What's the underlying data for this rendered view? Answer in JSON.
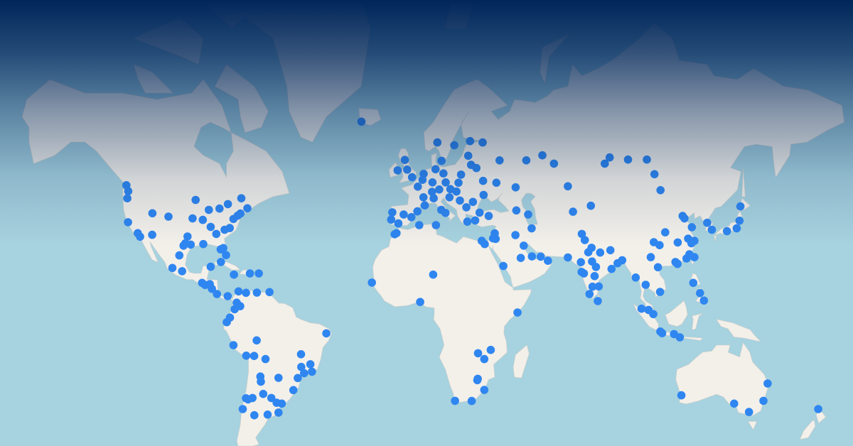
{
  "map": {
    "projection": "web-mercator",
    "colors": {
      "ocean": "#a7d2df",
      "land": "#f3f0ea",
      "marker": "#2f86f0",
      "top_shade": "#00265a"
    },
    "markers": [
      [
        47.6,
        -122.3
      ],
      [
        45.5,
        -122.7
      ],
      [
        49.3,
        -123.1
      ],
      [
        37.8,
        -122.4
      ],
      [
        34.0,
        -118.2
      ],
      [
        32.7,
        -117.2
      ],
      [
        33.4,
        -112.0
      ],
      [
        39.7,
        -105.0
      ],
      [
        40.8,
        -111.9
      ],
      [
        32.8,
        -96.8
      ],
      [
        29.8,
        -95.4
      ],
      [
        30.3,
        -97.7
      ],
      [
        29.4,
        -98.5
      ],
      [
        41.9,
        -87.6
      ],
      [
        42.3,
        -83.0
      ],
      [
        40.7,
        -74.0
      ],
      [
        42.4,
        -71.0
      ],
      [
        43.7,
        -79.4
      ],
      [
        45.5,
        -73.6
      ],
      [
        40.0,
        -75.2
      ],
      [
        38.9,
        -77.0
      ],
      [
        33.7,
        -84.4
      ],
      [
        25.8,
        -80.2
      ],
      [
        28.5,
        -81.4
      ],
      [
        28.0,
        -82.5
      ],
      [
        36.2,
        -86.8
      ],
      [
        45.0,
        -93.3
      ],
      [
        39.1,
        -94.6
      ],
      [
        38.6,
        -90.2
      ],
      [
        35.2,
        -80.8
      ],
      [
        35.8,
        -78.6
      ],
      [
        30.0,
        -90.0
      ],
      [
        19.4,
        -99.1
      ],
      [
        20.7,
        -103.3
      ],
      [
        25.7,
        -100.3
      ],
      [
        21.2,
        -86.8
      ],
      [
        14.6,
        -90.5
      ],
      [
        13.7,
        -89.2
      ],
      [
        14.1,
        -87.2
      ],
      [
        12.1,
        -86.3
      ],
      [
        9.9,
        -84.1
      ],
      [
        9.0,
        -79.5
      ],
      [
        23.1,
        -82.4
      ],
      [
        18.5,
        -69.9
      ],
      [
        18.5,
        -66.1
      ],
      [
        18.0,
        -76.8
      ],
      [
        10.7,
        -61.5
      ],
      [
        10.5,
        -66.9
      ],
      [
        11.0,
        -74.8
      ],
      [
        10.4,
        -71.6
      ],
      [
        4.7,
        -74.1
      ],
      [
        6.2,
        -75.6
      ],
      [
        3.4,
        -76.5
      ],
      [
        -0.2,
        -78.5
      ],
      [
        -2.2,
        -79.9
      ],
      [
        -12.0,
        -77.0
      ],
      [
        -16.4,
        -71.5
      ],
      [
        -16.5,
        -68.1
      ],
      [
        -17.8,
        -63.2
      ],
      [
        -25.3,
        -57.6
      ],
      [
        -33.4,
        -70.7
      ],
      [
        -33.0,
        -71.6
      ],
      [
        -36.8,
        -73.0
      ],
      [
        -32.9,
        -68.8
      ],
      [
        -31.4,
        -64.2
      ],
      [
        -32.9,
        -60.7
      ],
      [
        -34.6,
        -58.4
      ],
      [
        -34.9,
        -56.2
      ],
      [
        -38.0,
        -57.6
      ],
      [
        -30.0,
        -51.2
      ],
      [
        -25.4,
        -49.3
      ],
      [
        -23.5,
        -46.6
      ],
      [
        -22.9,
        -43.2
      ],
      [
        -19.9,
        -43.9
      ],
      [
        -15.8,
        -47.9
      ],
      [
        -7.0,
        -37.0
      ],
      [
        -10.0,
        -67.0
      ],
      [
        -38.9,
        -68.0
      ],
      [
        -38.7,
        -62.3
      ],
      [
        -26.8,
        -65.2
      ],
      [
        -24.8,
        -65.4
      ],
      [
        -21.0,
        -47.8
      ],
      [
        64.1,
        -21.9
      ],
      [
        38.7,
        -9.1
      ],
      [
        41.1,
        -8.6
      ],
      [
        40.4,
        -3.7
      ],
      [
        41.4,
        2.2
      ],
      [
        37.4,
        -6.0
      ],
      [
        39.5,
        -0.4
      ],
      [
        48.9,
        2.4
      ],
      [
        45.8,
        4.8
      ],
      [
        43.3,
        5.4
      ],
      [
        51.5,
        -0.1
      ],
      [
        53.5,
        -2.2
      ],
      [
        53.3,
        -6.3
      ],
      [
        55.9,
        -3.2
      ],
      [
        52.4,
        4.9
      ],
      [
        50.8,
        4.4
      ],
      [
        52.5,
        13.4
      ],
      [
        53.6,
        10.0
      ],
      [
        48.1,
        11.6
      ],
      [
        50.1,
        8.7
      ],
      [
        47.4,
        8.5
      ],
      [
        45.5,
        9.2
      ],
      [
        41.9,
        12.5
      ],
      [
        40.9,
        14.3
      ],
      [
        48.2,
        16.4
      ],
      [
        50.1,
        14.4
      ],
      [
        52.2,
        21.0
      ],
      [
        50.0,
        19.9
      ],
      [
        47.5,
        19.0
      ],
      [
        44.4,
        26.1
      ],
      [
        42.7,
        23.3
      ],
      [
        44.8,
        20.5
      ],
      [
        45.8,
        16.0
      ],
      [
        38.0,
        23.7
      ],
      [
        41.0,
        29.0
      ],
      [
        39.9,
        32.9
      ],
      [
        38.4,
        27.1
      ],
      [
        55.7,
        12.6
      ],
      [
        59.9,
        10.8
      ],
      [
        59.3,
        18.1
      ],
      [
        60.2,
        24.9
      ],
      [
        56.9,
        24.1
      ],
      [
        54.7,
        25.3
      ],
      [
        53.9,
        27.6
      ],
      [
        50.5,
        30.5
      ],
      [
        50.0,
        36.2
      ],
      [
        46.5,
        30.7
      ],
      [
        55.8,
        37.6
      ],
      [
        59.9,
        30.3
      ],
      [
        55.8,
        49.1
      ],
      [
        57.0,
        56.0
      ],
      [
        55.0,
        61.0
      ],
      [
        49.0,
        67.0
      ],
      [
        55.0,
        82.9
      ],
      [
        56.5,
        85.0
      ],
      [
        56.0,
        92.9
      ],
      [
        52.3,
        104.3
      ],
      [
        56.0,
        101.0
      ],
      [
        47.9,
        106.9
      ],
      [
        43.2,
        76.9
      ],
      [
        41.3,
        69.2
      ],
      [
        41.7,
        44.8
      ],
      [
        40.4,
        49.9
      ],
      [
        35.7,
        51.4
      ],
      [
        32.1,
        34.8
      ],
      [
        33.9,
        35.5
      ],
      [
        31.9,
        35.9
      ],
      [
        30.0,
        31.2
      ],
      [
        31.2,
        29.9
      ],
      [
        24.7,
        46.7
      ],
      [
        21.5,
        39.2
      ],
      [
        25.2,
        55.3
      ],
      [
        25.3,
        51.5
      ],
      [
        29.4,
        48.0
      ],
      [
        33.3,
        44.4
      ],
      [
        23.6,
        58.4
      ],
      [
        48.7,
        44.5
      ],
      [
        24.9,
        67.0
      ],
      [
        31.5,
        74.3
      ],
      [
        33.7,
        73.0
      ],
      [
        28.6,
        77.2
      ],
      [
        26.9,
        75.8
      ],
      [
        23.0,
        72.6
      ],
      [
        19.1,
        72.9
      ],
      [
        18.5,
        73.9
      ],
      [
        17.4,
        78.5
      ],
      [
        13.0,
        77.6
      ],
      [
        13.1,
        80.3
      ],
      [
        22.6,
        88.4
      ],
      [
        23.8,
        90.4
      ],
      [
        27.7,
        85.3
      ],
      [
        6.9,
        79.9
      ],
      [
        26.8,
        80.9
      ],
      [
        21.1,
        79.1
      ],
      [
        23.3,
        77.4
      ],
      [
        9.9,
        76.3
      ],
      [
        20.3,
        85.8
      ],
      [
        33.6,
        -7.6
      ],
      [
        34.0,
        -6.8
      ],
      [
        36.8,
        3.0
      ],
      [
        36.8,
        10.2
      ],
      [
        14.7,
        -17.4
      ],
      [
        6.5,
        3.4
      ],
      [
        18.0,
        9.0
      ],
      [
        2.0,
        45.3
      ],
      [
        -26.2,
        28.0
      ],
      [
        -25.7,
        28.2
      ],
      [
        -29.9,
        31.0
      ],
      [
        -33.9,
        18.4
      ],
      [
        -33.96,
        25.6
      ],
      [
        -15.4,
        28.3
      ],
      [
        -14.0,
        33.8
      ],
      [
        -17.8,
        31.0
      ],
      [
        39.9,
        116.4
      ],
      [
        39.1,
        117.2
      ],
      [
        31.2,
        121.5
      ],
      [
        32.0,
        118.8
      ],
      [
        30.3,
        120.2
      ],
      [
        23.1,
        113.3
      ],
      [
        22.5,
        114.1
      ],
      [
        22.3,
        114.2
      ],
      [
        30.7,
        104.0
      ],
      [
        29.6,
        106.5
      ],
      [
        30.6,
        114.3
      ],
      [
        34.3,
        108.9
      ],
      [
        36.1,
        120.4
      ],
      [
        24.5,
        118.1
      ],
      [
        26.1,
        119.3
      ],
      [
        25.0,
        102.7
      ],
      [
        37.6,
        127.0
      ],
      [
        35.2,
        129.0
      ],
      [
        35.7,
        139.7
      ],
      [
        34.7,
        135.5
      ],
      [
        43.0,
        141.3
      ],
      [
        38.3,
        140.9
      ],
      [
        25.0,
        121.5
      ],
      [
        14.6,
        121.0
      ],
      [
        10.3,
        123.9
      ],
      [
        7.1,
        125.6
      ],
      [
        21.0,
        105.8
      ],
      [
        10.8,
        106.7
      ],
      [
        13.8,
        100.5
      ],
      [
        16.8,
        96.2
      ],
      [
        3.1,
        101.7
      ],
      [
        1.3,
        103.8
      ],
      [
        3.6,
        98.7
      ],
      [
        -6.2,
        106.8
      ],
      [
        -7.3,
        112.7
      ],
      [
        -6.9,
        107.6
      ],
      [
        -8.7,
        115.2
      ],
      [
        -31.9,
        115.9
      ],
      [
        -34.9,
        138.6
      ],
      [
        -37.8,
        145.0
      ],
      [
        -33.9,
        151.2
      ],
      [
        -27.5,
        153.0
      ],
      [
        -36.8,
        174.8
      ]
    ]
  }
}
